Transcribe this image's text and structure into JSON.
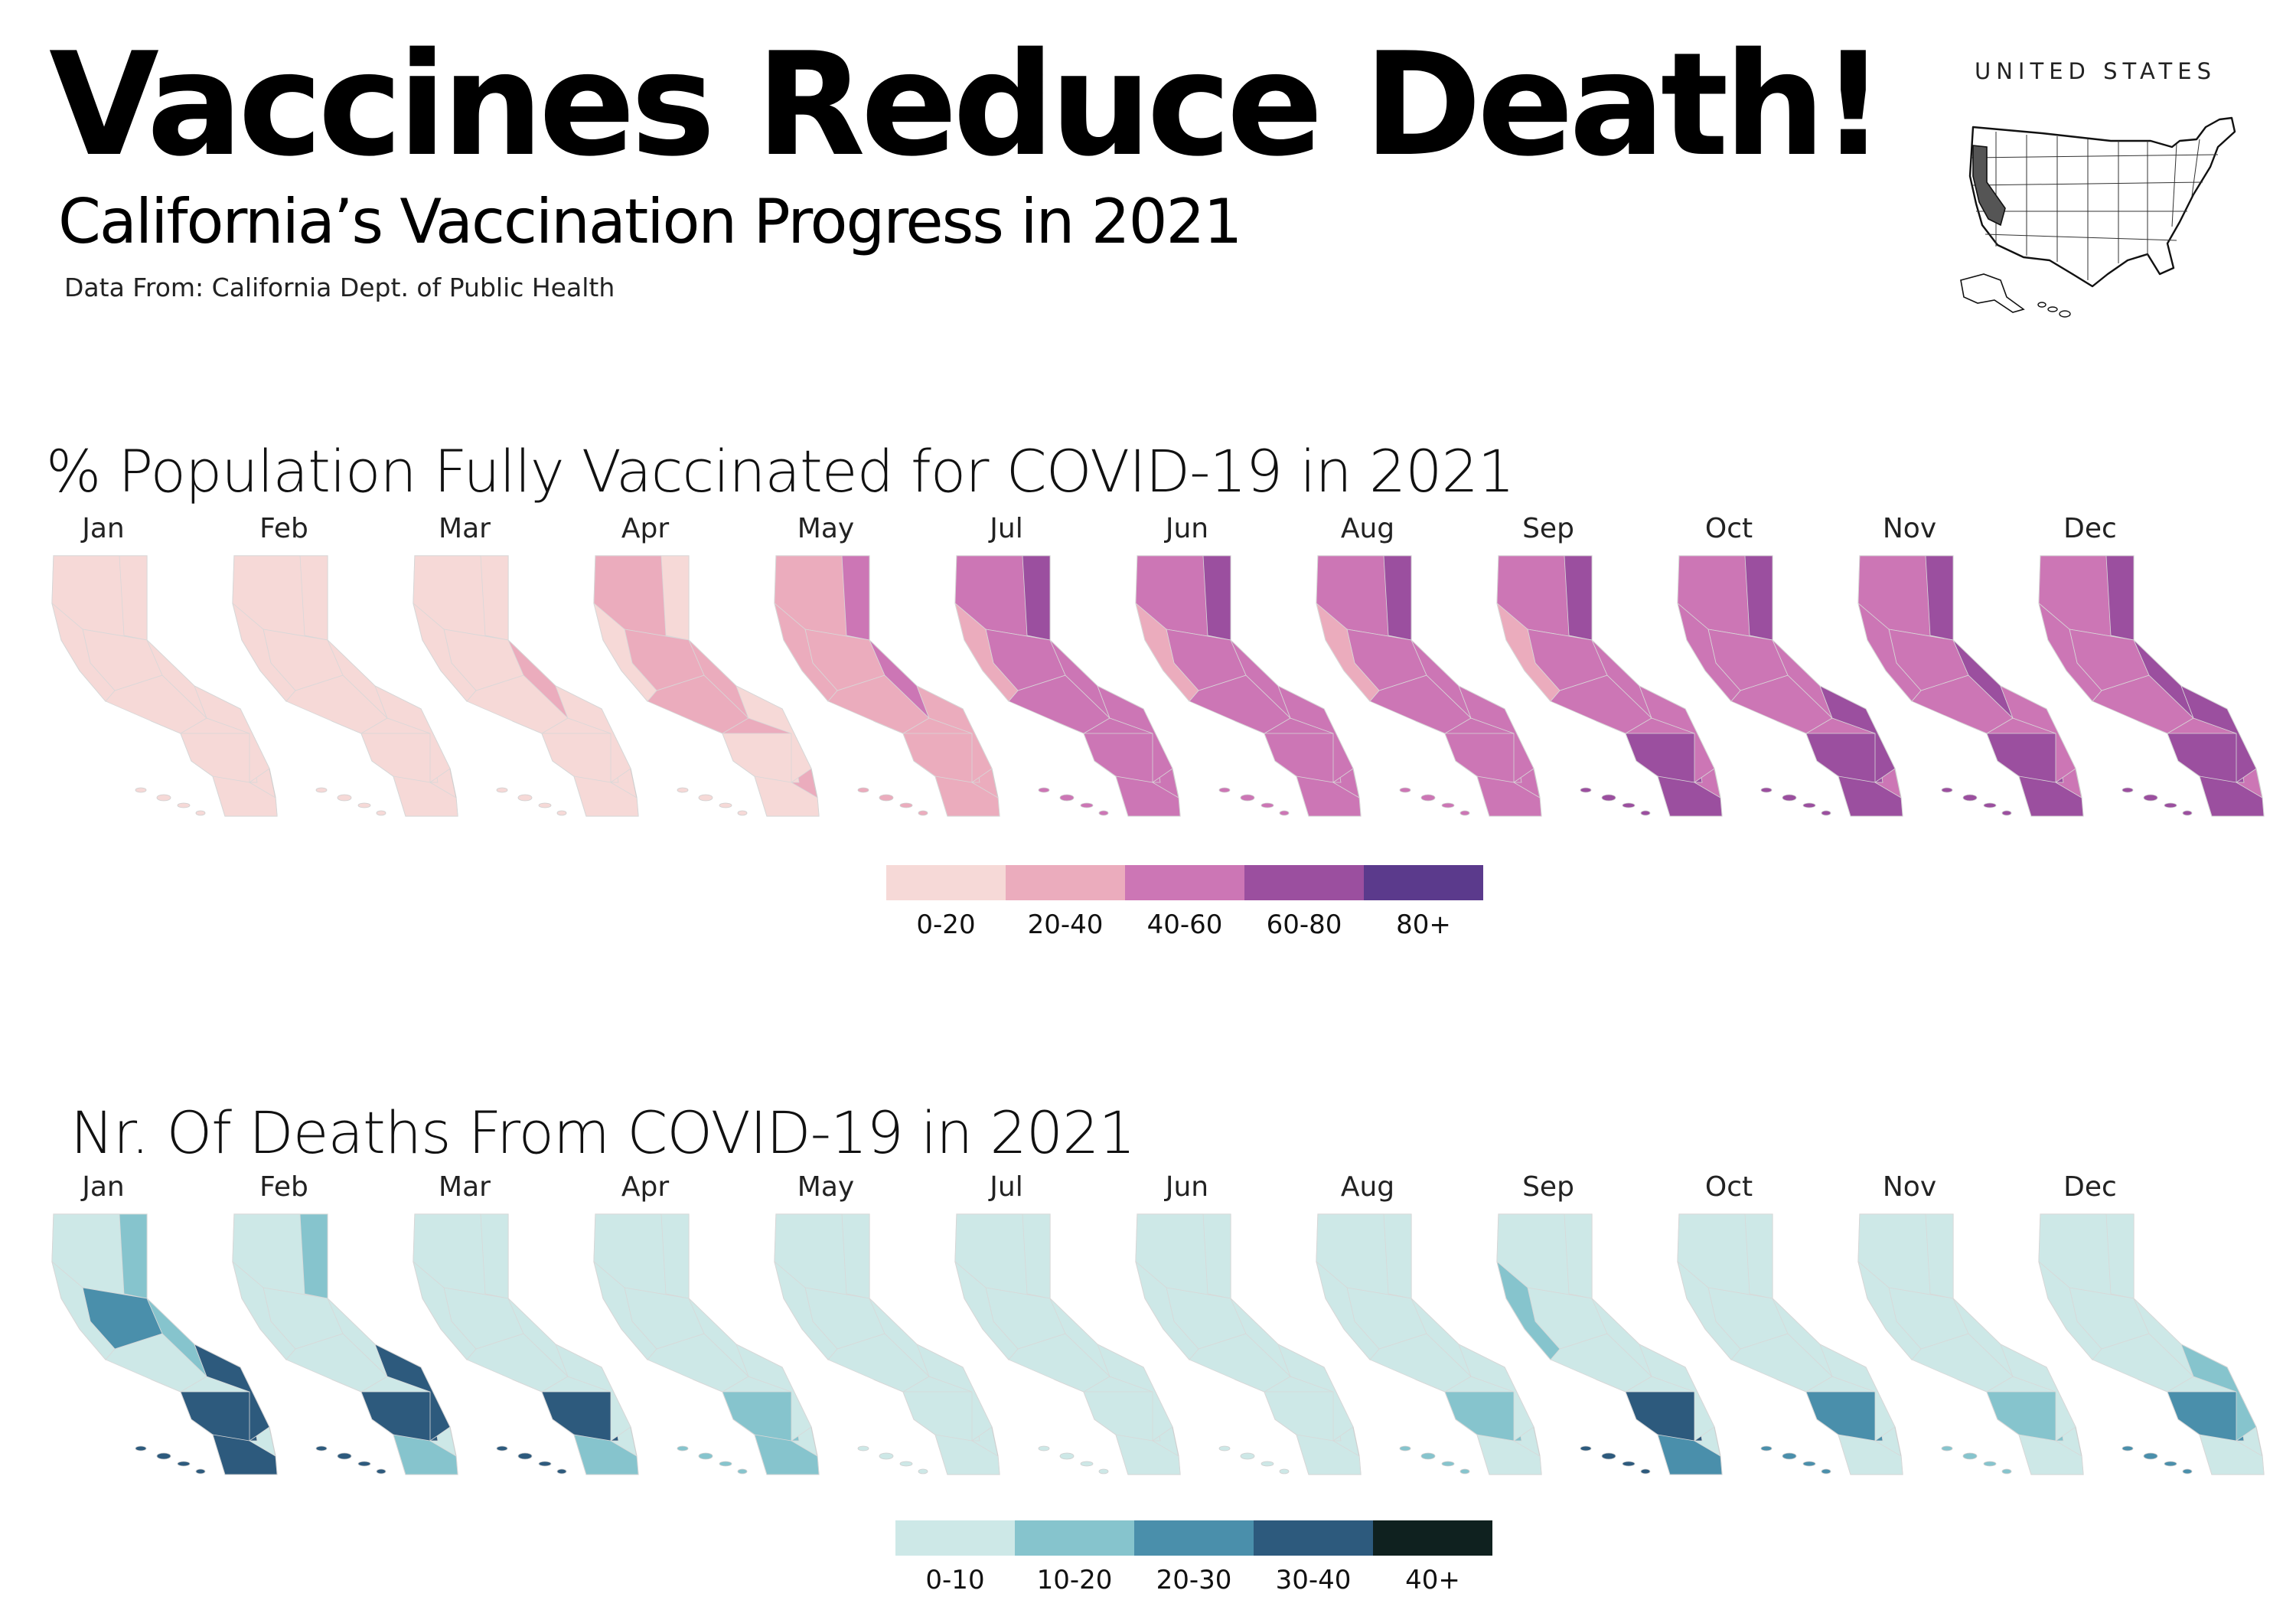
{
  "title": "Vaccines Reduce Death!",
  "subtitle": "California’s Vaccination Progress in 2021",
  "source": "Data From: California Dept. of Public Health",
  "inset": {
    "label": "UNITED STATES",
    "highlight_state": "California",
    "highlight_color": "#555555"
  },
  "vaccination": {
    "title": "% Population Fully Vaccinated for COVID-19 in 2021",
    "colors": [
      "#f6d9d7",
      "#ebacbd",
      "#cc76b5",
      "#9b4f9f",
      "#5b3a8c"
    ],
    "legend": [
      "0-20",
      "20-40",
      "40-60",
      "60-80",
      "80+"
    ],
    "months": [
      {
        "label": "Jan",
        "levels": [
          0,
          0,
          0,
          0,
          0,
          0,
          0,
          0
        ]
      },
      {
        "label": "Feb",
        "levels": [
          0,
          0,
          0,
          0,
          0,
          0,
          0,
          0
        ]
      },
      {
        "label": "Mar",
        "levels": [
          0,
          0,
          0,
          0,
          1,
          0,
          0,
          0
        ]
      },
      {
        "label": "Apr",
        "levels": [
          1,
          0,
          1,
          0,
          1,
          0,
          0,
          0
        ]
      },
      {
        "label": "May",
        "levels": [
          1,
          2,
          1,
          1,
          2,
          1,
          1,
          1
        ]
      },
      {
        "label": "Jul",
        "levels": [
          2,
          3,
          2,
          1,
          2,
          2,
          2,
          2
        ]
      },
      {
        "label": "Jun",
        "levels": [
          2,
          3,
          2,
          1,
          2,
          2,
          2,
          2
        ]
      },
      {
        "label": "Aug",
        "levels": [
          2,
          3,
          2,
          1,
          2,
          2,
          2,
          2
        ]
      },
      {
        "label": "Sep",
        "levels": [
          2,
          3,
          2,
          1,
          2,
          3,
          2,
          3
        ]
      },
      {
        "label": "Oct",
        "levels": [
          2,
          3,
          2,
          2,
          2,
          3,
          3,
          3
        ]
      },
      {
        "label": "Nov",
        "levels": [
          2,
          3,
          2,
          2,
          3,
          3,
          2,
          3
        ]
      },
      {
        "label": "Dec",
        "levels": [
          2,
          3,
          2,
          2,
          3,
          3,
          3,
          3
        ]
      }
    ]
  },
  "deaths": {
    "title": "Nr. Of Deaths From COVID-19 in 2021",
    "colors": [
      "#cde8e7",
      "#86c4cd",
      "#4a8fab",
      "#2d5a7d",
      "#0f211f"
    ],
    "legend": [
      "0-10",
      "10-20",
      "20-30",
      "30-40",
      "40+"
    ],
    "months": [
      {
        "label": "Jan",
        "levels": [
          0,
          1,
          2,
          0,
          1,
          3,
          3,
          3
        ]
      },
      {
        "label": "Feb",
        "levels": [
          0,
          1,
          0,
          0,
          0,
          3,
          3,
          1
        ]
      },
      {
        "label": "Mar",
        "levels": [
          0,
          0,
          0,
          0,
          0,
          3,
          0,
          1
        ]
      },
      {
        "label": "Apr",
        "levels": [
          0,
          0,
          0,
          0,
          0,
          1,
          0,
          1
        ]
      },
      {
        "label": "May",
        "levels": [
          0,
          0,
          0,
          0,
          0,
          0,
          0,
          0
        ]
      },
      {
        "label": "Jul",
        "levels": [
          0,
          0,
          0,
          0,
          0,
          0,
          0,
          0
        ]
      },
      {
        "label": "Jun",
        "levels": [
          0,
          0,
          0,
          0,
          0,
          0,
          0,
          0
        ]
      },
      {
        "label": "Aug",
        "levels": [
          0,
          0,
          0,
          0,
          0,
          1,
          0,
          0
        ]
      },
      {
        "label": "Sep",
        "levels": [
          0,
          0,
          0,
          1,
          0,
          3,
          0,
          2
        ]
      },
      {
        "label": "Oct",
        "levels": [
          0,
          0,
          0,
          0,
          0,
          2,
          0,
          0
        ]
      },
      {
        "label": "Nov",
        "levels": [
          0,
          0,
          0,
          0,
          0,
          1,
          0,
          0
        ]
      },
      {
        "label": "Dec",
        "levels": [
          0,
          0,
          0,
          0,
          0,
          2,
          1,
          0
        ]
      }
    ]
  }
}
